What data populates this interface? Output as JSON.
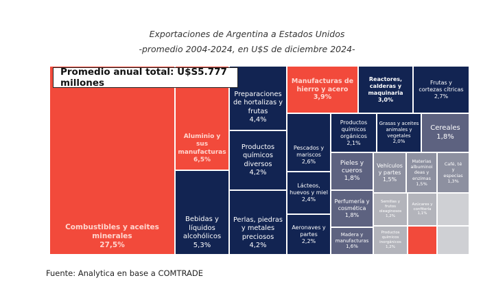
{
  "chart_data": {
    "type": "treemap",
    "title": "Exportaciones de Argentina a Estados Unidos",
    "subtitle": "-promedio 2004-2024, en U$S de diciembre 2024-",
    "annotation": "Promedio anual total: U$S5.777 millones",
    "source": "Fuente: Analytica en base a COMTRADE",
    "colors": {
      "red": "#f24a3b",
      "navy": "#122452",
      "slate": "#5d6280",
      "gray": "#8d90a0",
      "light_gray": "#b3b4bb",
      "pale_gray": "#cfd0d4"
    },
    "items": [
      {
        "label": "Combustibles y aceites minerales",
        "value": 27.5,
        "display": "27,5%",
        "color": "red"
      },
      {
        "label": "Aluminio y sus manufacturas",
        "value": 6.5,
        "display": "6,5%",
        "color": "red"
      },
      {
        "label": "Bebidas y líquidos alcohólicos",
        "value": 5.3,
        "display": "5,3%",
        "color": "navy"
      },
      {
        "label": "Preparaciones de hortalizas y frutas",
        "value": 4.4,
        "display": "4,4%",
        "color": "navy"
      },
      {
        "label": "Productos químicos diversos",
        "value": 4.2,
        "display": "4,2%",
        "color": "navy"
      },
      {
        "label": "Perlas, piedras y metales preciosos",
        "value": 4.2,
        "display": "4,2%",
        "color": "navy"
      },
      {
        "label": "Manufacturas de hierro y acero",
        "value": 3.9,
        "display": "3,9%",
        "color": "red"
      },
      {
        "label": "Reactores, calderas y maquinaria",
        "value": 3.0,
        "display": "3,0%",
        "color": "navy"
      },
      {
        "label": "Frutas y cortezas cítricas",
        "value": 2.7,
        "display": "2,7%",
        "color": "navy"
      },
      {
        "label": "Pescados y mariscos",
        "value": 2.6,
        "display": "2,6%",
        "color": "navy"
      },
      {
        "label": "Lácteos, huevos y miel",
        "value": 2.4,
        "display": "2,4%",
        "color": "navy"
      },
      {
        "label": "Aeronaves y partes",
        "value": 2.2,
        "display": "2,2%",
        "color": "navy"
      },
      {
        "label": "Productos químicos orgánicos",
        "value": 2.1,
        "display": "2,1%",
        "color": "navy"
      },
      {
        "label": "Grasas y aceites animales y vegetales",
        "value": 2.0,
        "display": "2,0%",
        "color": "navy"
      },
      {
        "label": "Cereales",
        "value": 1.8,
        "display": "1,8%",
        "color": "slate"
      },
      {
        "label": "Pieles y cueros",
        "value": 1.8,
        "display": "1,8%",
        "color": "slate"
      },
      {
        "label": "Perfumería y cosmética",
        "value": 1.8,
        "display": "1,8%",
        "color": "slate"
      },
      {
        "label": "Madera y manufacturas",
        "value": 1.6,
        "display": "1,6%",
        "color": "slate"
      },
      {
        "label": "Vehículos y partes",
        "value": 1.5,
        "display": "1,5%",
        "color": "gray"
      },
      {
        "label": "Materias albuminoideas y enzimas",
        "value": 1.5,
        "display": "1,5%",
        "color": "gray"
      },
      {
        "label": "Café, té y especias",
        "value": 1.3,
        "display": "1,3%",
        "color": "gray"
      },
      {
        "label": "Semillas y frutos oleaginosos",
        "value": 1.2,
        "display": "1,2%",
        "color": "light_gray"
      },
      {
        "label": "Productos químicos inorgánicos",
        "value": 1.2,
        "display": "1,2%",
        "color": "light_gray"
      },
      {
        "label": "Azúcares y confitería",
        "value": 1.1,
        "display": "1,1%",
        "color": "light_gray"
      },
      {
        "label": "",
        "value": null,
        "display": "",
        "color": "red"
      },
      {
        "label": "",
        "value": null,
        "display": "",
        "color": "pale_gray"
      },
      {
        "label": "",
        "value": null,
        "display": "",
        "color": "pale_gray"
      }
    ]
  },
  "header": {
    "title": "Exportaciones de Argentina a Estados Unidos",
    "subtitle": "-promedio 2004-2024, en U$S de diciembre 2024-"
  },
  "annotation": "Promedio anual total: U$S5.777 millones",
  "footer": {
    "source": "Fuente: Analytica en base a COMTRADE"
  }
}
